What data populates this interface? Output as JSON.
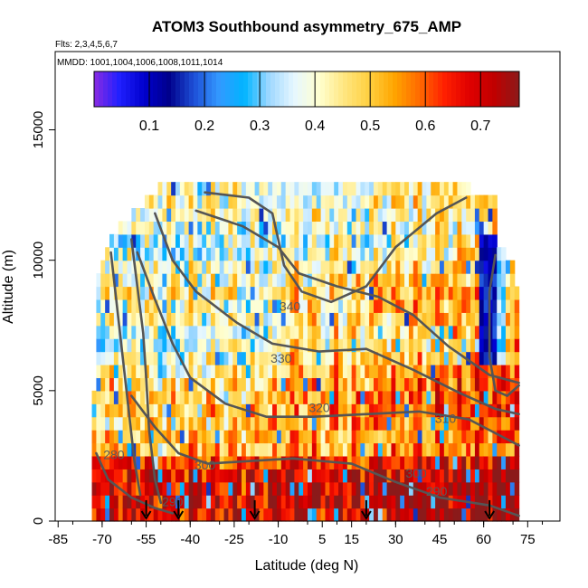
{
  "chart_data": {
    "type": "heatmap",
    "title": "ATOM3 Southbound asymmetry_675_AMP",
    "flights_label": "Flts: 2,3,4,5,6,7",
    "dates_label": "MMDD: 1001,1004,1006,1008,1011,1014",
    "xlabel": "Latitude (deg N)",
    "ylabel": "Altitude (m)",
    "xlim": [
      -86,
      86
    ],
    "ylim": [
      0,
      18000
    ],
    "x_ticks": [
      -85,
      -70,
      -55,
      -40,
      -25,
      -10,
      5,
      15,
      30,
      45,
      60,
      75
    ],
    "x_tick_labels": [
      "-85",
      "-70",
      "-55",
      "-40",
      "-25",
      "-10",
      "5",
      "15",
      "30",
      "45",
      "60",
      "75"
    ],
    "y_ticks": [
      0,
      5000,
      10000,
      15000
    ],
    "y_tick_labels": [
      "0",
      "5000",
      "10000",
      "15000"
    ],
    "colorbar": {
      "min": 0.0,
      "max": 0.77,
      "ticks": [
        0.1,
        0.2,
        0.3,
        0.4,
        0.5,
        0.6,
        0.7
      ],
      "tick_labels": [
        "0.1",
        "0.2",
        "0.3",
        "0.4",
        "0.5",
        "0.6",
        "0.7"
      ],
      "colors": [
        "#8a2be2",
        "#2020ff",
        "#0000cd",
        "#00008b",
        "#1e50d8",
        "#3399ff",
        "#00b4ff",
        "#9fd8ff",
        "#e6f7ff",
        "#ffffd0",
        "#ffe680",
        "#ffd040",
        "#ffa500",
        "#ff6a00",
        "#ff2000",
        "#e00000",
        "#c00000",
        "#8b1a1a"
      ]
    },
    "contour_labels": [
      {
        "text": "340",
        "lat": -6,
        "alt": 8200
      },
      {
        "text": "330",
        "lat": -9,
        "alt": 6200
      },
      {
        "text": "320",
        "lat": 4,
        "alt": 4300
      },
      {
        "text": "310",
        "lat": 47,
        "alt": 3900
      },
      {
        "text": "300",
        "lat": -35,
        "alt": 2100
      },
      {
        "text": "300",
        "lat": 37,
        "alt": 1800
      },
      {
        "text": "290",
        "lat": -46,
        "alt": 700
      },
      {
        "text": "290",
        "lat": 44,
        "alt": 1100
      },
      {
        "text": "280",
        "lat": -66,
        "alt": 2500
      }
    ],
    "flight_arrows_lat": [
      -55,
      -44,
      -18,
      20,
      62
    ]
  }
}
